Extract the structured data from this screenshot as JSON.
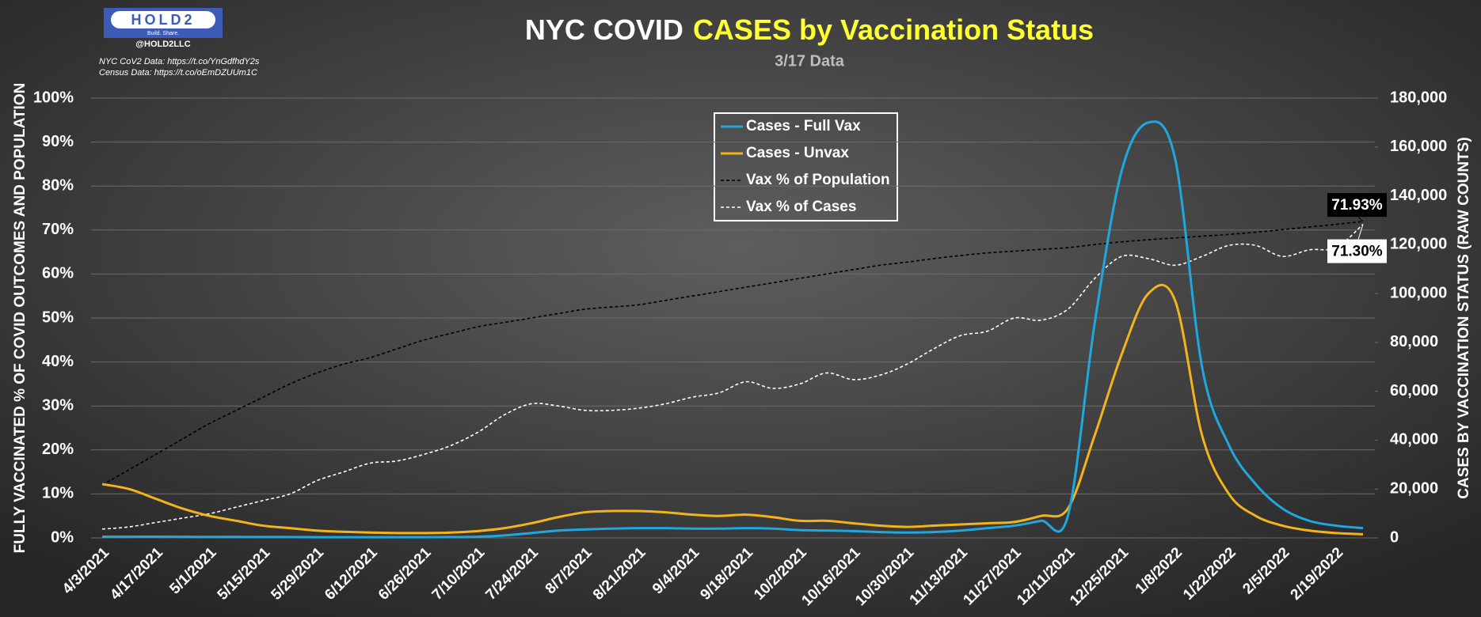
{
  "logo": {
    "name": "HOLD2",
    "tagline": "Build. Share.",
    "handle": "@HOLD2LLC"
  },
  "sources": [
    "NYC CoV2 Data: https://t.co/YnGdfhdY2s",
    "Census Data: https://t.co/oEmDZUUm1C"
  ],
  "chart_data": {
    "type": "line",
    "title": [
      "NYC COVID",
      "CASES by Vaccination Status"
    ],
    "subtitle": "3/17 Data",
    "y_label": "FULLY VACCINATED % OF COVID OUTCOMES AND POPULATION",
    "y2_label": "CASES BY VACCINATION STATUS (RAW COUNTS)",
    "categories": [
      "4/3/2021",
      null,
      "4/17/2021",
      null,
      "5/1/2021",
      null,
      "5/15/2021",
      null,
      "5/29/2021",
      null,
      "6/12/2021",
      null,
      "6/26/2021",
      null,
      "7/10/2021",
      null,
      "7/24/2021",
      null,
      "8/7/2021",
      null,
      "8/21/2021",
      null,
      "9/4/2021",
      null,
      "9/18/2021",
      null,
      "10/2/2021",
      null,
      "10/16/2021",
      null,
      "10/30/2021",
      null,
      "11/13/2021",
      null,
      "11/27/2021",
      null,
      "12/11/2021",
      null,
      "12/25/2021",
      null,
      "1/8/2022",
      null,
      "1/22/2022",
      null,
      "2/5/2022",
      null,
      "2/19/2022",
      null
    ],
    "ylim": [
      0,
      100
    ],
    "yticks": [
      {
        "value": 0,
        "label": "0%"
      },
      {
        "value": 10,
        "label": "10%"
      },
      {
        "value": 20,
        "label": "20%"
      },
      {
        "value": 30,
        "label": "30%"
      },
      {
        "value": 40,
        "label": "40%"
      },
      {
        "value": 50,
        "label": "50%"
      },
      {
        "value": 60,
        "label": "60%"
      },
      {
        "value": 70,
        "label": "70%"
      },
      {
        "value": 80,
        "label": "80%"
      },
      {
        "value": 90,
        "label": "90%"
      },
      {
        "value": 100,
        "label": "100%"
      }
    ],
    "y2lim": [
      0,
      180000
    ],
    "y2ticks": [
      0,
      {
        "value": 20000,
        "label": "20,000"
      },
      {
        "value": 40000,
        "label": "40,000"
      },
      {
        "value": 60000,
        "label": "60,000"
      },
      {
        "value": 80000,
        "label": "80,000"
      },
      {
        "value": 100000,
        "label": "100,000"
      },
      {
        "value": 120000,
        "label": "120,000"
      },
      {
        "value": 140000,
        "label": "140,000"
      },
      {
        "value": 160000,
        "label": "160,000"
      },
      {
        "value": 180000,
        "label": "180,000"
      }
    ],
    "grid": true,
    "legend": "top",
    "series": [
      {
        "name": "Cases - Full Vax",
        "color": "#1fa8e0",
        "style": "solid",
        "axis": "y2",
        "values": [
          500,
          500,
          500,
          450,
          400,
          400,
          350,
          350,
          300,
          300,
          300,
          300,
          300,
          350,
          500,
          1000,
          2000,
          3000,
          3500,
          3800,
          4000,
          4000,
          3800,
          3800,
          4000,
          3800,
          3200,
          3000,
          2800,
          2400,
          2200,
          2400,
          3000,
          4000,
          5000,
          7000,
          9000,
          88000,
          150000,
          170000,
          155000,
          70000,
          38000,
          22000,
          12000,
          7000,
          5000,
          4000
        ]
      },
      {
        "name": "Cases - Unvax",
        "color": "#f2b31b",
        "style": "solid",
        "axis": "y2",
        "values": [
          22000,
          20000,
          16000,
          12000,
          9000,
          7000,
          5000,
          4000,
          3000,
          2500,
          2200,
          2000,
          2000,
          2200,
          2800,
          4000,
          6000,
          8500,
          10500,
          11000,
          11000,
          10500,
          9500,
          9000,
          9500,
          8500,
          7000,
          7000,
          6000,
          5000,
          4500,
          5000,
          5500,
          6000,
          6500,
          9000,
          12000,
          42000,
          75000,
          100000,
          97000,
          42000,
          18000,
          9000,
          5000,
          3000,
          2000,
          1500
        ]
      },
      {
        "name": "Vax % of Population",
        "color": "#000000",
        "style": "dashed",
        "values": [
          12,
          15.5,
          19,
          22.5,
          26,
          29,
          32,
          35,
          37.5,
          39.5,
          41,
          43,
          45,
          46.5,
          48,
          49,
          50,
          51,
          52,
          52.5,
          53,
          54,
          55,
          56,
          57,
          58,
          59,
          60,
          61,
          62,
          62.7,
          63.5,
          64.2,
          64.8,
          65.2,
          65.6,
          66,
          66.7,
          67.3,
          67.8,
          68.2,
          68.6,
          69,
          69.5,
          70.1,
          70.7,
          71.3,
          71.93
        ],
        "value_labels": [
          null,
          null,
          null,
          null,
          null,
          null,
          null,
          null,
          null,
          null,
          null,
          null,
          null,
          null,
          null,
          null,
          null,
          null,
          null,
          null,
          null,
          null,
          null,
          null,
          null,
          null,
          null,
          null,
          null,
          null,
          null,
          null,
          null,
          null,
          null,
          null,
          null,
          null,
          null,
          null,
          null,
          null,
          null,
          null,
          null,
          null,
          null,
          "71.93%"
        ]
      },
      {
        "name": "Vax % of Cases",
        "color": "#ffffff",
        "style": "dashed",
        "values": [
          2,
          2.5,
          3.5,
          4.5,
          5.5,
          7,
          8.5,
          10,
          13,
          15,
          17,
          17.5,
          19,
          21,
          24,
          28,
          30.5,
          30,
          29,
          29,
          29.5,
          30.5,
          32,
          33,
          35.5,
          34,
          35,
          37.5,
          36,
          37,
          39.5,
          43,
          46,
          47,
          50,
          49.5,
          52,
          59,
          64,
          63.5,
          62,
          64,
          66.5,
          66.5,
          64,
          65.5,
          66,
          71.3
        ],
        "value_labels": [
          null,
          null,
          null,
          null,
          null,
          null,
          null,
          null,
          null,
          null,
          null,
          null,
          null,
          null,
          null,
          null,
          null,
          null,
          null,
          null,
          null,
          null,
          null,
          null,
          null,
          null,
          null,
          null,
          null,
          null,
          null,
          null,
          null,
          null,
          null,
          null,
          null,
          null,
          null,
          null,
          null,
          null,
          null,
          null,
          null,
          null,
          null,
          "71.30%"
        ]
      }
    ]
  }
}
